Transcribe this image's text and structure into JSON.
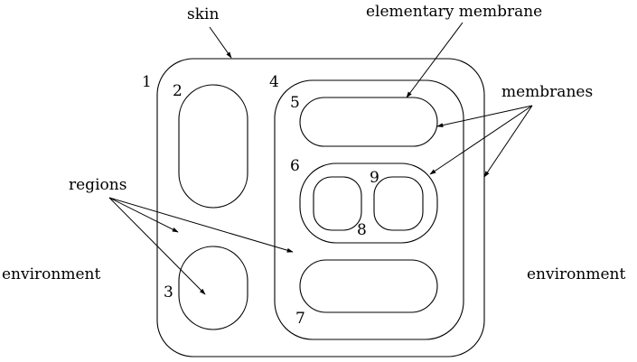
{
  "labels": {
    "skin": "skin",
    "elementary_membrane": "elementary membrane",
    "membranes": "membranes",
    "regions": "regions",
    "environment_left": "environment",
    "environment_right": "environment"
  },
  "membrane_numbers": {
    "m1": "1",
    "m2": "2",
    "m3": "3",
    "m4": "4",
    "m5": "5",
    "m6": "6",
    "m7": "7",
    "m8": "8",
    "m9": "9"
  }
}
